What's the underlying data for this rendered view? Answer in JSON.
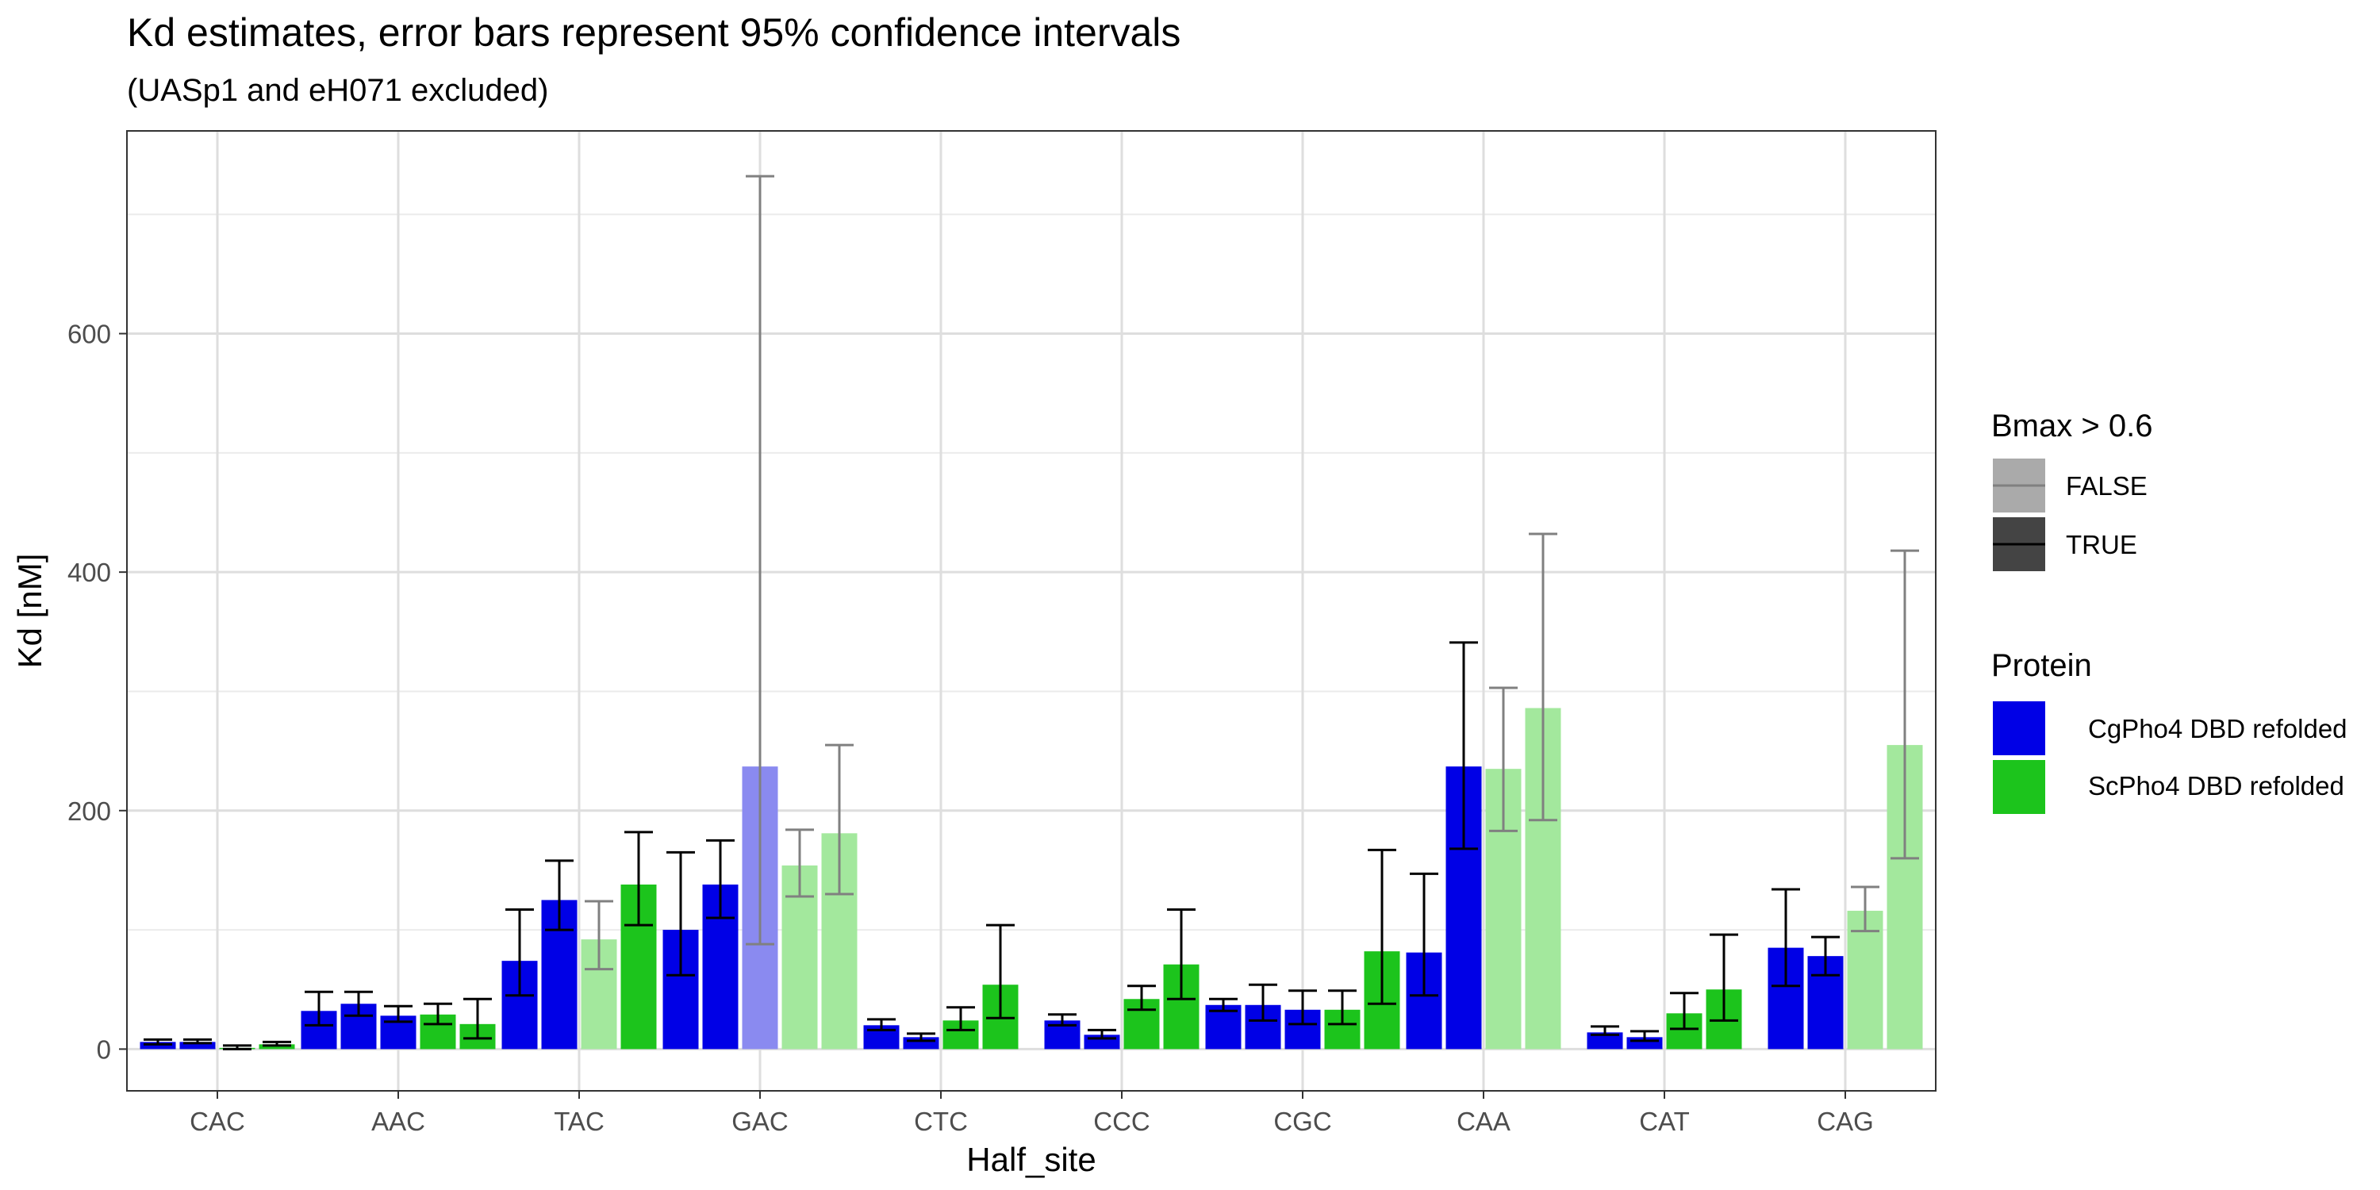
{
  "chart_data": {
    "type": "bar",
    "title": "Kd estimates, error bars represent 95% confidence intervals",
    "subtitle": "(UASp1 and eH071 excluded)",
    "xlabel": "Half_site",
    "ylabel": "Kd [nM]",
    "ylim": [
      -35,
      770
    ],
    "yticks": [
      0,
      200,
      400,
      600
    ],
    "grid": true,
    "categories": [
      "CAC",
      "AAC",
      "TAC",
      "GAC",
      "CTC",
      "CCC",
      "CGC",
      "CAA",
      "CAT",
      "CAG"
    ],
    "legend_position": "right",
    "legends": [
      {
        "title": "Bmax > 0.6",
        "entries": [
          {
            "label": "FALSE",
            "color": "#aaaaaa",
            "line": "#808080"
          },
          {
            "label": "TRUE",
            "color": "#444444",
            "line": "#000000"
          }
        ]
      },
      {
        "title": "Protein",
        "entries": [
          {
            "label": "CgPho4 DBD refolded",
            "color": "#0000e6"
          },
          {
            "label": "ScPho4 DBD refolded",
            "color": "#1cc41c"
          }
        ]
      }
    ],
    "series": [
      {
        "protein": "CgPho4 DBD refolded",
        "slot": 1,
        "values": [
          6,
          32,
          74,
          100,
          20,
          24,
          37,
          81,
          14,
          85
        ],
        "lower": [
          4,
          20,
          45,
          62,
          16,
          20,
          32,
          45,
          12,
          53
        ],
        "upper": [
          8,
          48,
          117,
          165,
          25,
          29,
          42,
          147,
          19,
          134
        ],
        "bmax_gt_06": [
          true,
          true,
          true,
          true,
          true,
          true,
          true,
          true,
          true,
          true
        ]
      },
      {
        "protein": "CgPho4 DBD refolded",
        "slot": 2,
        "values": [
          6,
          38,
          125,
          138,
          10,
          12,
          37,
          237,
          10,
          78
        ],
        "lower": [
          5,
          28,
          100,
          110,
          7,
          9,
          24,
          168,
          7,
          62
        ],
        "upper": [
          8,
          48,
          158,
          175,
          13,
          16,
          54,
          341,
          15,
          94
        ],
        "bmax_gt_06": [
          true,
          true,
          true,
          true,
          true,
          true,
          true,
          true,
          true,
          true
        ]
      },
      {
        "protein": "CgPho4 DBD refolded / ScPho4 DBD refolded",
        "slot": 3,
        "values": [
          1,
          28,
          92,
          237,
          24,
          42,
          33,
          235,
          30,
          116
        ],
        "lower": [
          0,
          23,
          67,
          88,
          16,
          33,
          21,
          183,
          17,
          99
        ],
        "upper": [
          3,
          36,
          124,
          732,
          35,
          53,
          49,
          303,
          47,
          136
        ],
        "bmax_gt_06": [
          true,
          true,
          false,
          false,
          true,
          true,
          true,
          false,
          true,
          false
        ]
      },
      {
        "protein": "ScPho4 DBD refolded",
        "slot": 3,
        "values": [
          null,
          29,
          null,
          154,
          null,
          null,
          33,
          null,
          null,
          null
        ],
        "lower": [
          null,
          21,
          null,
          128,
          null,
          null,
          21,
          null,
          null,
          null
        ],
        "upper": [
          null,
          38,
          null,
          184,
          null,
          null,
          49,
          null,
          null,
          null
        ],
        "bmax_gt_06": [
          null,
          true,
          null,
          false,
          null,
          null,
          true,
          null,
          null,
          null
        ]
      },
      {
        "protein": "ScPho4 DBD refolded",
        "slot": 4,
        "values": [
          4,
          21,
          138,
          181,
          54,
          71,
          82,
          286,
          50,
          255
        ],
        "lower": [
          3,
          9,
          104,
          130,
          26,
          42,
          38,
          192,
          24,
          160
        ],
        "upper": [
          6,
          42,
          182,
          255,
          104,
          117,
          167,
          432,
          96,
          418
        ],
        "bmax_gt_06": [
          true,
          true,
          true,
          false,
          true,
          true,
          true,
          false,
          true,
          false
        ]
      }
    ]
  }
}
